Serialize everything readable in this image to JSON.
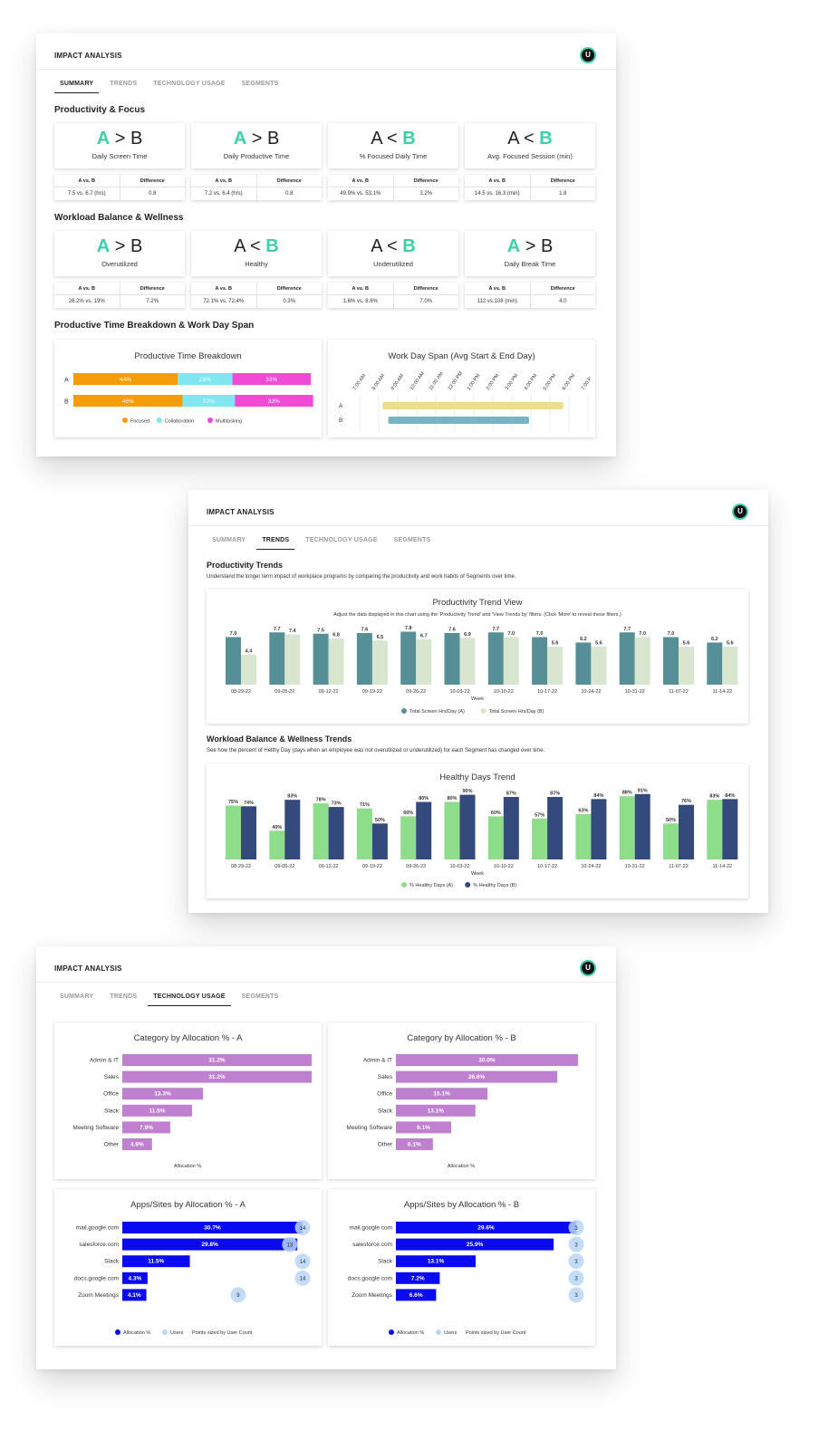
{
  "app_title": "IMPACT ANALYSIS",
  "avatar_letter": "U",
  "tabs": [
    "SUMMARY",
    "TRENDS",
    "TECHNOLOGY USAGE",
    "SEGMENTS"
  ],
  "colors": {
    "accent": "#3ccfa8",
    "focused": "#f59c0b",
    "collaboration": "#7fe6f2",
    "multitasking": "#f04ad7",
    "trendA": "#568f95",
    "trendB": "#d9e6cf",
    "healthyA": "#8ddd8a",
    "healthyB": "#344a7c",
    "category": "#bf81cf",
    "apps": "#0a0af0",
    "users": "#b9d6f7"
  },
  "summary": {
    "section1_title": "Productivity & Focus",
    "section2_title": "Workload Balance & Wellness",
    "section3_title": "Productive Time Breakdown & Work Day Span",
    "col_ab": "A vs. B",
    "col_diff": "Difference",
    "cards1": [
      {
        "left": "A",
        "op": ">",
        "right": "B",
        "winner": "A",
        "label": "Daily Screen Time",
        "ab": "7.5 vs. 6.7 (hrs)",
        "diff": "0.8"
      },
      {
        "left": "A",
        "op": ">",
        "right": "B",
        "winner": "A",
        "label": "Daily Productive Time",
        "ab": "7.2 vs. 6.4 (hrs)",
        "diff": "0.8"
      },
      {
        "left": "A",
        "op": "<",
        "right": "B",
        "winner": "B",
        "label": "% Focused Daily Time",
        "ab": "49.9% vs. 53.1%",
        "diff": "3.2%"
      },
      {
        "left": "A",
        "op": "<",
        "right": "B",
        "winner": "B",
        "label": "Avg. Focused Session (min)",
        "ab": "14.5 vs. 16.3 (min)",
        "diff": "1.8"
      }
    ],
    "cards2": [
      {
        "left": "A",
        "op": ">",
        "right": "B",
        "winner": "A",
        "label": "Overutilized",
        "ab": "26.2% vs. 19%",
        "diff": "7.2%"
      },
      {
        "left": "A",
        "op": "<",
        "right": "B",
        "winner": "B",
        "label": "Healthy",
        "ab": "72.1% vs. 72.4%",
        "diff": "0.3%"
      },
      {
        "left": "A",
        "op": "<",
        "right": "B",
        "winner": "B",
        "label": "Underutilized",
        "ab": "1.6% vs. 8.6%",
        "diff": "7.0%"
      },
      {
        "left": "A",
        "op": ">",
        "right": "B",
        "winner": "A",
        "label": "Daily Break Time",
        "ab": "112 vs.108 (min)",
        "diff": "4.0"
      }
    ]
  },
  "trends": {
    "section1_title": "Productivity Trends",
    "section1_desc": "Understand the longer term impact of workplace programs by comparing the productivity and work habits of Segments over time.",
    "section2_title": "Workload Balance & Wellness Trends",
    "section2_desc": "See how the percent of Helthy Day (days when an employee was not overutilized or underutilized) for each Segment has changed over time."
  },
  "chart_data": [
    {
      "type": "bar",
      "title": "Productive Time Breakdown",
      "orientation": "horizontal-stacked",
      "categories": [
        "A",
        "B"
      ],
      "series": [
        {
          "name": "Focused",
          "values": [
            44,
            46
          ],
          "labels": [
            "44%",
            "46%"
          ]
        },
        {
          "name": "Collaboration",
          "values": [
            23,
            22
          ],
          "labels": [
            "23%",
            "22%"
          ]
        },
        {
          "name": "Multitasking",
          "values": [
            33,
            33
          ],
          "labels": [
            "33%",
            "33%"
          ]
        }
      ]
    },
    {
      "type": "bar",
      "title": "Work Day Span (Avg Start & End Day)",
      "orientation": "horizontal-range",
      "categories": [
        "A",
        "B"
      ],
      "x_ticks": [
        "7:00 AM",
        "8:00 AM",
        "9:00 AM",
        "10:00 AM",
        "11:00 AM",
        "12:00 PM",
        "1:00 PM",
        "2:00 PM",
        "3:00 PM",
        "4:00 PM",
        "5:00 PM",
        "6:00 PM",
        "7:00 P"
      ],
      "ranges": [
        [
          8.2,
          17.7
        ],
        [
          8.5,
          15.9
        ]
      ]
    },
    {
      "type": "bar",
      "title": "Productivity Trend View",
      "subtitle": "Adjust the data displayed in this chart using the 'Productivity Trend' and 'View Trends by' filters. (Click 'More' to reveal these filters.)",
      "xlabel": "Week",
      "categories": [
        "08-29-22",
        "09-05-22",
        "09-12-22",
        "09-19-22",
        "09-26-22",
        "10-03-22",
        "10-10-22",
        "10-17-22",
        "10-24-22",
        "10-31-22",
        "11-07-22",
        "11-14-22"
      ],
      "ylim": [
        0,
        8
      ],
      "series": [
        {
          "name": "Total Screen Hrs/Day (A)",
          "values": [
            7.0,
            7.7,
            7.5,
            7.6,
            7.8,
            7.6,
            7.7,
            7.0,
            6.2,
            7.7,
            7.0,
            6.2
          ]
        },
        {
          "name": "Total Screen Hrs/Day (B)",
          "values": [
            4.4,
            7.4,
            6.8,
            6.5,
            6.7,
            6.9,
            7.0,
            5.6,
            5.6,
            7.0,
            5.6,
            5.6
          ]
        }
      ]
    },
    {
      "type": "bar",
      "title": "Healthy Days Trend",
      "xlabel": "Week",
      "categories": [
        "08-29-22",
        "09-05-22",
        "09-12-22",
        "09-19-22",
        "09-26-22",
        "10-03-22",
        "10-10-22",
        "10-17-22",
        "10-24-22",
        "10-31-22",
        "11-07-22",
        "11-14-22"
      ],
      "ylim": [
        0,
        92
      ],
      "series": [
        {
          "name": "% Healthy Days (A)",
          "values": [
            75,
            40,
            78,
            71,
            60,
            80,
            60,
            57,
            63,
            88,
            50,
            83
          ]
        },
        {
          "name": "% Healthy Days (B)",
          "values": [
            74,
            83,
            73,
            50,
            80,
            90,
            87,
            87,
            84,
            91,
            76,
            84
          ]
        }
      ]
    },
    {
      "type": "bar",
      "title": "Category by Allocation % - A",
      "xlabel": "Allocation %",
      "orientation": "horizontal",
      "categories": [
        "Admin & IT",
        "Sales",
        "Office",
        "Slack",
        "Meeting Software",
        "Other"
      ],
      "values": [
        31.2,
        31.2,
        13.3,
        11.5,
        7.9,
        4.9
      ]
    },
    {
      "type": "bar",
      "title": "Category by Allocation % - B",
      "xlabel": "Allocation %",
      "orientation": "horizontal",
      "categories": [
        "Admin & IT",
        "Sales",
        "Office",
        "Slack",
        "Meeting Software",
        "Other"
      ],
      "values": [
        30.0,
        26.6,
        15.1,
        13.1,
        9.1,
        6.1
      ]
    },
    {
      "type": "bar",
      "title": "Apps/Sites by Allocation % - A",
      "orientation": "horizontal",
      "categories": [
        "mail.google.com",
        "salesforce.com",
        "Slack",
        "docs.google.com",
        "Zoom Meetings"
      ],
      "series": [
        {
          "name": "Allocation %",
          "values": [
            30.7,
            29.8,
            11.5,
            4.3,
            4.1
          ]
        },
        {
          "name": "Users",
          "values": [
            14,
            13,
            14,
            14,
            9
          ]
        }
      ],
      "legend_note": "Points sized by User Count"
    },
    {
      "type": "bar",
      "title": "Apps/Sites by Allocation % - B",
      "orientation": "horizontal",
      "categories": [
        "mail.google.com",
        "salesforce.com",
        "Slack",
        "docs.google.com",
        "Zoom Meetings"
      ],
      "series": [
        {
          "name": "Allocation %",
          "values": [
            29.6,
            25.9,
            13.1,
            7.2,
            6.6
          ]
        },
        {
          "name": "Users",
          "values": [
            3,
            3,
            3,
            3,
            3
          ]
        }
      ],
      "legend_note": "Points sized by User Count"
    }
  ]
}
